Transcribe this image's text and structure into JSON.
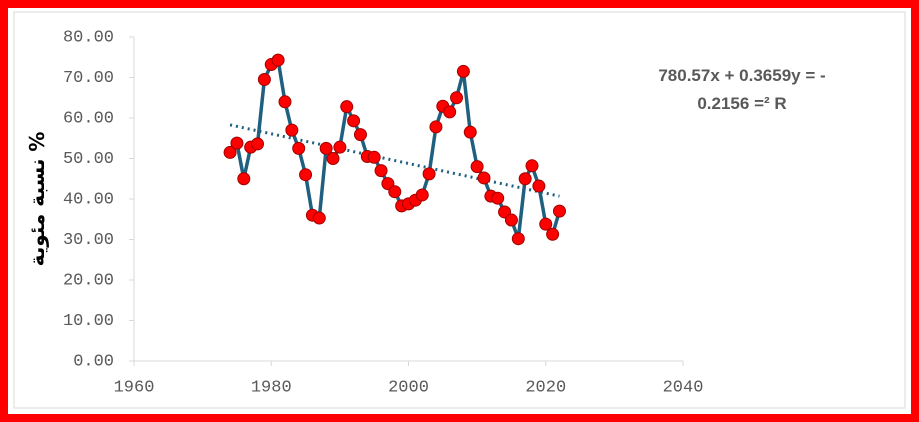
{
  "chart_data": {
    "type": "line",
    "y_label": "نسبة مئوية %",
    "annotations": [
      "780.57x + 0.3659y = -",
      "0.2156 =² R"
    ],
    "x": [
      1974,
      1975,
      1976,
      1977,
      1978,
      1979,
      1980,
      1981,
      1982,
      1983,
      1984,
      1985,
      1986,
      1987,
      1988,
      1989,
      1990,
      1991,
      1992,
      1993,
      1994,
      1995,
      1996,
      1997,
      1998,
      1999,
      2000,
      2001,
      2002,
      2003,
      2004,
      2005,
      2006,
      2007,
      2008,
      2009,
      2010,
      2011,
      2012,
      2013,
      2014,
      2015,
      2016,
      2017,
      2018,
      2019,
      2020,
      2021,
      2022
    ],
    "series": [
      {
        "color": "#1f5f7f",
        "marker_color": "#ff0000",
        "values": [
          51.5,
          53.8,
          45,
          52.8,
          53.6,
          69.5,
          73.2,
          74.3,
          64,
          57,
          52.5,
          46,
          36,
          35.3,
          52.5,
          50,
          52.8,
          62.8,
          59.3,
          55.9,
          50.5,
          50.3,
          47,
          43.8,
          41.8,
          38.3,
          38.8,
          39.7,
          41,
          46.2,
          57.8,
          62.9,
          61.5,
          65,
          71.5,
          56.5,
          48,
          45.2,
          40.7,
          40.2,
          36.8,
          34.8,
          30.2,
          45,
          48.2,
          43.2,
          33.8,
          31.3,
          37
        ]
      }
    ],
    "trendline": {
      "x": [
        1974,
        2022
      ],
      "values": [
        58.3,
        40.7
      ],
      "color": "#1f5f7f"
    },
    "xlim": [
      1960,
      2040
    ],
    "xticks": [
      1960,
      1980,
      2000,
      2020,
      2040
    ],
    "ylim": [
      0,
      80
    ],
    "yticks": [
      {
        "value": 0,
        "label": "0.00"
      },
      {
        "value": 10,
        "label": "10.00"
      },
      {
        "value": 20,
        "label": "20.00"
      },
      {
        "value": 30,
        "label": "30.00"
      },
      {
        "value": 40,
        "label": "40.00"
      },
      {
        "value": 50,
        "label": "50.00"
      },
      {
        "value": 60,
        "label": "60.00"
      },
      {
        "value": 70,
        "label": "70.00"
      },
      {
        "value": 80,
        "label": "80.00"
      }
    ],
    "grid": false
  }
}
